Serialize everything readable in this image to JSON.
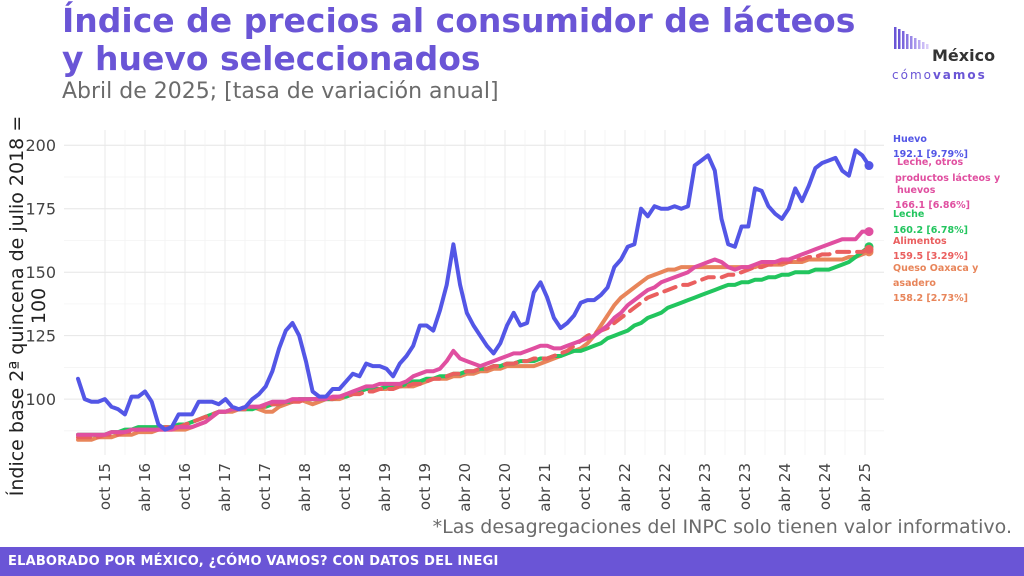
{
  "header": {
    "title": "Índice de precios al consumidor de lácteos y huevo seleccionados",
    "subtitle": "Abril de 2025; [tasa de variación anual]"
  },
  "logo": {
    "top": "México",
    "bottom_light": "cómo",
    "bottom_bold": "vamos"
  },
  "note": "*Las desagregaciones del INPC solo tienen valor informativo.",
  "footer": "ELABORADO POR MÉXICO, ¿CÓMO VAMOS? CON DATOS DEL INEGI",
  "chart_data": {
    "type": "line",
    "title": "Índice de precios al consumidor de lácteos y huevo seleccionados",
    "ylabel": "Índice base 2ª quincena de julio 2018 = 100",
    "ylim": [
      78,
      206
    ],
    "yticks": [
      100,
      125,
      150,
      175,
      200
    ],
    "x_labels": [
      "oct 15",
      "abr 16",
      "oct 16",
      "abr 17",
      "oct 17",
      "abr 18",
      "oct 18",
      "abr 19",
      "oct 19",
      "abr 20",
      "oct 20",
      "abr 21",
      "oct 21",
      "abr 22",
      "oct 22",
      "abr 23",
      "oct 23",
      "abr 24",
      "oct 24",
      "abr 25"
    ],
    "x_range": [
      "jul 15",
      "abr 25"
    ],
    "grid": true,
    "series": [
      {
        "name": "Huevo",
        "color": "#5356e6",
        "style": "solid",
        "label": "Huevo",
        "value_label": "192.1 [9.79%]",
        "values": [
          108,
          100,
          99,
          99,
          100,
          97,
          96,
          94,
          101,
          101,
          103,
          99,
          90,
          88,
          89,
          94,
          94,
          94,
          99,
          99,
          99,
          98,
          100,
          97,
          96,
          97,
          100,
          102,
          105,
          111,
          120,
          127,
          130,
          125,
          115,
          103,
          101,
          101,
          104,
          104,
          107,
          110,
          109,
          114,
          113,
          113,
          112,
          109,
          114,
          117,
          121,
          129,
          129,
          127,
          135,
          145,
          161,
          145,
          134,
          129,
          125,
          121,
          118,
          122,
          129,
          134,
          129,
          130,
          142,
          146,
          140,
          132,
          128,
          130,
          133,
          138,
          139,
          139,
          141,
          144,
          152,
          155,
          160,
          161,
          175,
          172,
          176,
          175,
          175,
          176,
          175,
          176,
          192,
          194,
          196,
          190,
          171,
          161,
          160,
          168,
          168,
          183,
          182,
          176,
          173,
          171,
          175,
          183,
          178,
          184,
          191,
          193,
          194,
          195,
          190,
          188,
          198,
          196,
          192
        ]
      },
      {
        "name": "Leche, otros productos lácteos y huevos",
        "color": "#e04fa0",
        "style": "solid",
        "label": "Leche, otros productos lácteos y huevos",
        "value_label": "166.1 [6.86%]",
        "values": [
          86,
          86,
          86,
          86,
          86,
          87,
          87,
          87,
          88,
          88,
          88,
          88,
          88,
          88,
          88,
          89,
          89,
          89,
          90,
          91,
          93,
          95,
          95,
          96,
          96,
          97,
          97,
          97,
          98,
          99,
          99,
          99,
          100,
          100,
          100,
          100,
          100,
          100,
          101,
          101,
          102,
          103,
          104,
          105,
          105,
          106,
          106,
          106,
          106,
          107,
          109,
          110,
          111,
          111,
          112,
          115,
          119,
          116,
          115,
          114,
          113,
          114,
          115,
          116,
          117,
          118,
          118,
          119,
          120,
          121,
          121,
          120,
          120,
          121,
          122,
          123,
          124,
          125,
          127,
          129,
          132,
          134,
          137,
          139,
          141,
          143,
          144,
          146,
          147,
          148,
          149,
          150,
          152,
          153,
          154,
          155,
          154,
          152,
          151,
          152,
          152,
          153,
          154,
          154,
          154,
          155,
          155,
          156,
          157,
          158,
          159,
          160,
          161,
          162,
          163,
          163,
          163,
          166,
          166
        ]
      },
      {
        "name": "Leche",
        "color": "#22c55e",
        "style": "solid",
        "label": "Leche",
        "value_label": "160.2 [6.78%]",
        "values": [
          86,
          86,
          86,
          86,
          86,
          87,
          87,
          88,
          88,
          89,
          89,
          89,
          89,
          89,
          89,
          90,
          90,
          91,
          92,
          93,
          94,
          95,
          95,
          96,
          96,
          96,
          96,
          97,
          97,
          98,
          98,
          99,
          99,
          100,
          100,
          100,
          100,
          100,
          100,
          101,
          101,
          102,
          103,
          104,
          104,
          104,
          105,
          105,
          105,
          106,
          107,
          107,
          108,
          108,
          109,
          109,
          110,
          110,
          111,
          111,
          112,
          112,
          113,
          113,
          114,
          114,
          115,
          115,
          115,
          116,
          116,
          117,
          117,
          118,
          119,
          119,
          120,
          121,
          122,
          124,
          125,
          126,
          127,
          129,
          130,
          132,
          133,
          134,
          136,
          137,
          138,
          139,
          140,
          141,
          142,
          143,
          144,
          145,
          145,
          146,
          146,
          147,
          147,
          148,
          148,
          149,
          149,
          150,
          150,
          150,
          151,
          151,
          151,
          152,
          153,
          154,
          156,
          158,
          160
        ]
      },
      {
        "name": "Alimentos",
        "color": "#ea5f5f",
        "style": "dashed",
        "label": "Alimentos",
        "value_label": "159.5 [3.29%]",
        "values": [
          85,
          85,
          85,
          85,
          86,
          86,
          86,
          87,
          87,
          88,
          88,
          88,
          88,
          89,
          89,
          89,
          90,
          91,
          92,
          93,
          94,
          95,
          95,
          96,
          96,
          96,
          97,
          97,
          97,
          98,
          98,
          99,
          99,
          99,
          100,
          100,
          100,
          100,
          100,
          101,
          101,
          102,
          102,
          103,
          103,
          104,
          104,
          104,
          105,
          105,
          106,
          106,
          107,
          108,
          108,
          109,
          110,
          110,
          111,
          111,
          112,
          112,
          113,
          113,
          114,
          114,
          115,
          115,
          116,
          116,
          116,
          117,
          118,
          119,
          121,
          123,
          125,
          126,
          127,
          128,
          130,
          132,
          134,
          136,
          138,
          140,
          141,
          142,
          143,
          144,
          145,
          145,
          146,
          147,
          148,
          148,
          148,
          149,
          149,
          150,
          151,
          152,
          152,
          153,
          153,
          154,
          154,
          155,
          155,
          156,
          156,
          157,
          157,
          158,
          158,
          158,
          158,
          158,
          159
        ]
      },
      {
        "name": "Queso Oaxaca y asadero",
        "color": "#e8855a",
        "style": "solid",
        "label": "Queso Oaxaca y asadero",
        "value_label": "158.2 [2.73%]",
        "values": [
          84,
          84,
          84,
          85,
          85,
          85,
          86,
          86,
          86,
          87,
          87,
          87,
          88,
          88,
          88,
          88,
          88,
          89,
          90,
          91,
          93,
          95,
          95,
          95,
          96,
          96,
          97,
          96,
          95,
          95,
          97,
          98,
          99,
          100,
          99,
          98,
          99,
          100,
          100,
          100,
          101,
          102,
          103,
          104,
          104,
          104,
          104,
          105,
          105,
          105,
          105,
          106,
          107,
          108,
          108,
          108,
          109,
          109,
          110,
          110,
          111,
          111,
          112,
          112,
          113,
          113,
          113,
          113,
          113,
          114,
          115,
          116,
          117,
          118,
          119,
          120,
          122,
          125,
          129,
          133,
          137,
          140,
          142,
          144,
          146,
          148,
          149,
          150,
          151,
          151,
          152,
          152,
          152,
          152,
          152,
          152,
          152,
          152,
          152,
          152,
          152,
          152,
          153,
          153,
          153,
          153,
          154,
          154,
          154,
          155,
          155,
          155,
          155,
          155,
          155,
          156,
          156,
          157,
          158
        ]
      }
    ]
  }
}
